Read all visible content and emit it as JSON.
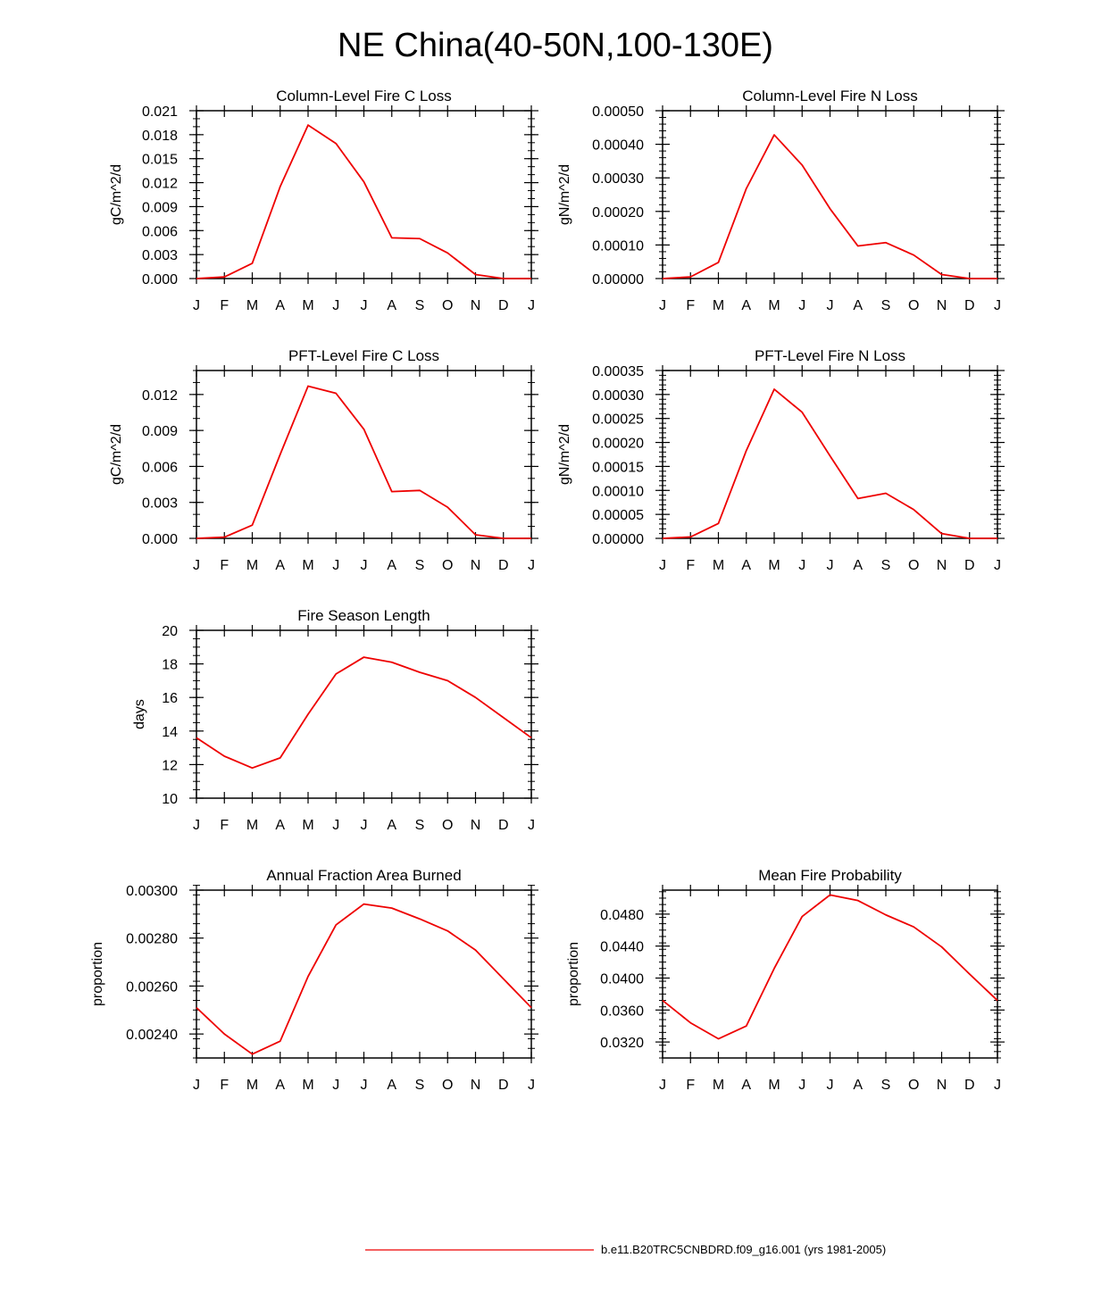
{
  "page_title": "NE China(40-50N,100-130E)",
  "series_color": "#ee0000",
  "legend": {
    "label": "b.e11.B20TRC5CNBDRD.f09_g16.001 (yrs 1981-2005)"
  },
  "chart_data": [
    {
      "id": "column-c-loss",
      "type": "line",
      "title": "Column-Level Fire C Loss",
      "ylabel": "gC/m^2/d",
      "ylim": [
        0,
        0.021
      ],
      "yticks": [
        0.0,
        0.003,
        0.006,
        0.009,
        0.012,
        0.015,
        0.018,
        0.021
      ],
      "ytick_labels": [
        "0.000",
        "0.003",
        "0.006",
        "0.009",
        "0.012",
        "0.015",
        "0.018",
        "0.021"
      ],
      "yminor": 0.001,
      "categories": [
        "J",
        "F",
        "M",
        "A",
        "M",
        "J",
        "J",
        "A",
        "S",
        "O",
        "N",
        "D",
        "J"
      ],
      "values": [
        0.0,
        0.0002,
        0.0019,
        0.0115,
        0.0192,
        0.0169,
        0.0121,
        0.0051,
        0.005,
        0.0032,
        0.0005,
        0.0,
        0.0
      ]
    },
    {
      "id": "column-n-loss",
      "type": "line",
      "title": "Column-Level Fire N Loss",
      "ylabel": "gN/m^2/d",
      "ylim": [
        0,
        0.0005
      ],
      "yticks": [
        0.0,
        0.0001,
        0.0002,
        0.0003,
        0.0004,
        0.0005
      ],
      "ytick_labels": [
        "0.00000",
        "0.00010",
        "0.00020",
        "0.00030",
        "0.00040",
        "0.00050"
      ],
      "yminor": 2e-05,
      "categories": [
        "J",
        "F",
        "M",
        "A",
        "M",
        "J",
        "J",
        "A",
        "S",
        "O",
        "N",
        "D",
        "J"
      ],
      "values": [
        0.0,
        5e-06,
        4.8e-05,
        0.000268,
        0.000428,
        0.000338,
        0.000208,
        9.7e-05,
        0.000107,
        7e-05,
        1.2e-05,
        0.0,
        0.0
      ]
    },
    {
      "id": "pft-c-loss",
      "type": "line",
      "title": "PFT-Level Fire C Loss",
      "ylabel": "gC/m^2/d",
      "ylim": [
        0,
        0.014
      ],
      "yticks": [
        0.0,
        0.003,
        0.006,
        0.009,
        0.012
      ],
      "ytick_labels": [
        "0.000",
        "0.003",
        "0.006",
        "0.009",
        "0.012"
      ],
      "yminor": 0.001,
      "categories": [
        "J",
        "F",
        "M",
        "A",
        "M",
        "J",
        "J",
        "A",
        "S",
        "O",
        "N",
        "D",
        "J"
      ],
      "values": [
        0.0,
        0.0001,
        0.0011,
        0.007,
        0.0127,
        0.0121,
        0.0091,
        0.0039,
        0.004,
        0.0026,
        0.0003,
        0.0,
        0.0
      ]
    },
    {
      "id": "pft-n-loss",
      "type": "line",
      "title": "PFT-Level Fire N Loss",
      "ylabel": "gN/m^2/d",
      "ylim": [
        0,
        0.00035
      ],
      "yticks": [
        0.0,
        5e-05,
        0.0001,
        0.00015,
        0.0002,
        0.00025,
        0.0003,
        0.00035
      ],
      "ytick_labels": [
        "0.00000",
        "0.00005",
        "0.00010",
        "0.00015",
        "0.00020",
        "0.00025",
        "0.00030",
        "0.00035"
      ],
      "yminor": 1e-05,
      "categories": [
        "J",
        "F",
        "M",
        "A",
        "M",
        "J",
        "J",
        "A",
        "S",
        "O",
        "N",
        "D",
        "J"
      ],
      "values": [
        0.0,
        3e-06,
        3.1e-05,
        0.000183,
        0.000311,
        0.000263,
        0.000172,
        8.3e-05,
        9.4e-05,
        6e-05,
        1e-05,
        0.0,
        0.0
      ]
    },
    {
      "id": "fire-season-length",
      "type": "line",
      "title": "Fire Season Length",
      "ylabel": "days",
      "ylim": [
        10,
        20
      ],
      "yticks": [
        10,
        12,
        14,
        16,
        18,
        20
      ],
      "ytick_labels": [
        "10",
        "12",
        "14",
        "16",
        "18",
        "20"
      ],
      "yminor": 0.5,
      "categories": [
        "J",
        "F",
        "M",
        "A",
        "M",
        "J",
        "J",
        "A",
        "S",
        "O",
        "N",
        "D",
        "J"
      ],
      "values": [
        13.6,
        12.5,
        11.8,
        12.4,
        15.0,
        17.4,
        18.4,
        18.1,
        17.5,
        17.0,
        16.0,
        14.8,
        13.6
      ]
    },
    {
      "id": "annual-fraction-area-burned",
      "type": "line",
      "title": "Annual Fraction Area Burned",
      "ylabel": "proportion",
      "ylim": [
        0.0023,
        0.003
      ],
      "yticks": [
        0.0024,
        0.0026,
        0.0028,
        0.003
      ],
      "ytick_labels": [
        "0.00240",
        "0.00260",
        "0.00280",
        "0.00300"
      ],
      "yminor": 4e-05,
      "categories": [
        "J",
        "F",
        "M",
        "A",
        "M",
        "J",
        "J",
        "A",
        "S",
        "O",
        "N",
        "D",
        "J"
      ],
      "values": [
        0.00251,
        0.0024,
        0.002316,
        0.00237,
        0.00264,
        0.002855,
        0.002942,
        0.002925,
        0.00288,
        0.00283,
        0.00275,
        0.00263,
        0.00251
      ]
    },
    {
      "id": "mean-fire-probability",
      "type": "line",
      "title": "Mean Fire Probability",
      "ylabel": "proportion",
      "ylim": [
        0.03,
        0.051
      ],
      "yticks": [
        0.032,
        0.036,
        0.04,
        0.044,
        0.048
      ],
      "ytick_labels": [
        "0.0320",
        "0.0360",
        "0.0400",
        "0.0440",
        "0.0480"
      ],
      "yminor": 0.0008,
      "categories": [
        "J",
        "F",
        "M",
        "A",
        "M",
        "J",
        "J",
        "A",
        "S",
        "O",
        "N",
        "D",
        "J"
      ],
      "values": [
        0.0372,
        0.0344,
        0.0324,
        0.034,
        0.0412,
        0.0477,
        0.0504,
        0.0497,
        0.0479,
        0.0464,
        0.0439,
        0.0405,
        0.0372
      ]
    }
  ]
}
